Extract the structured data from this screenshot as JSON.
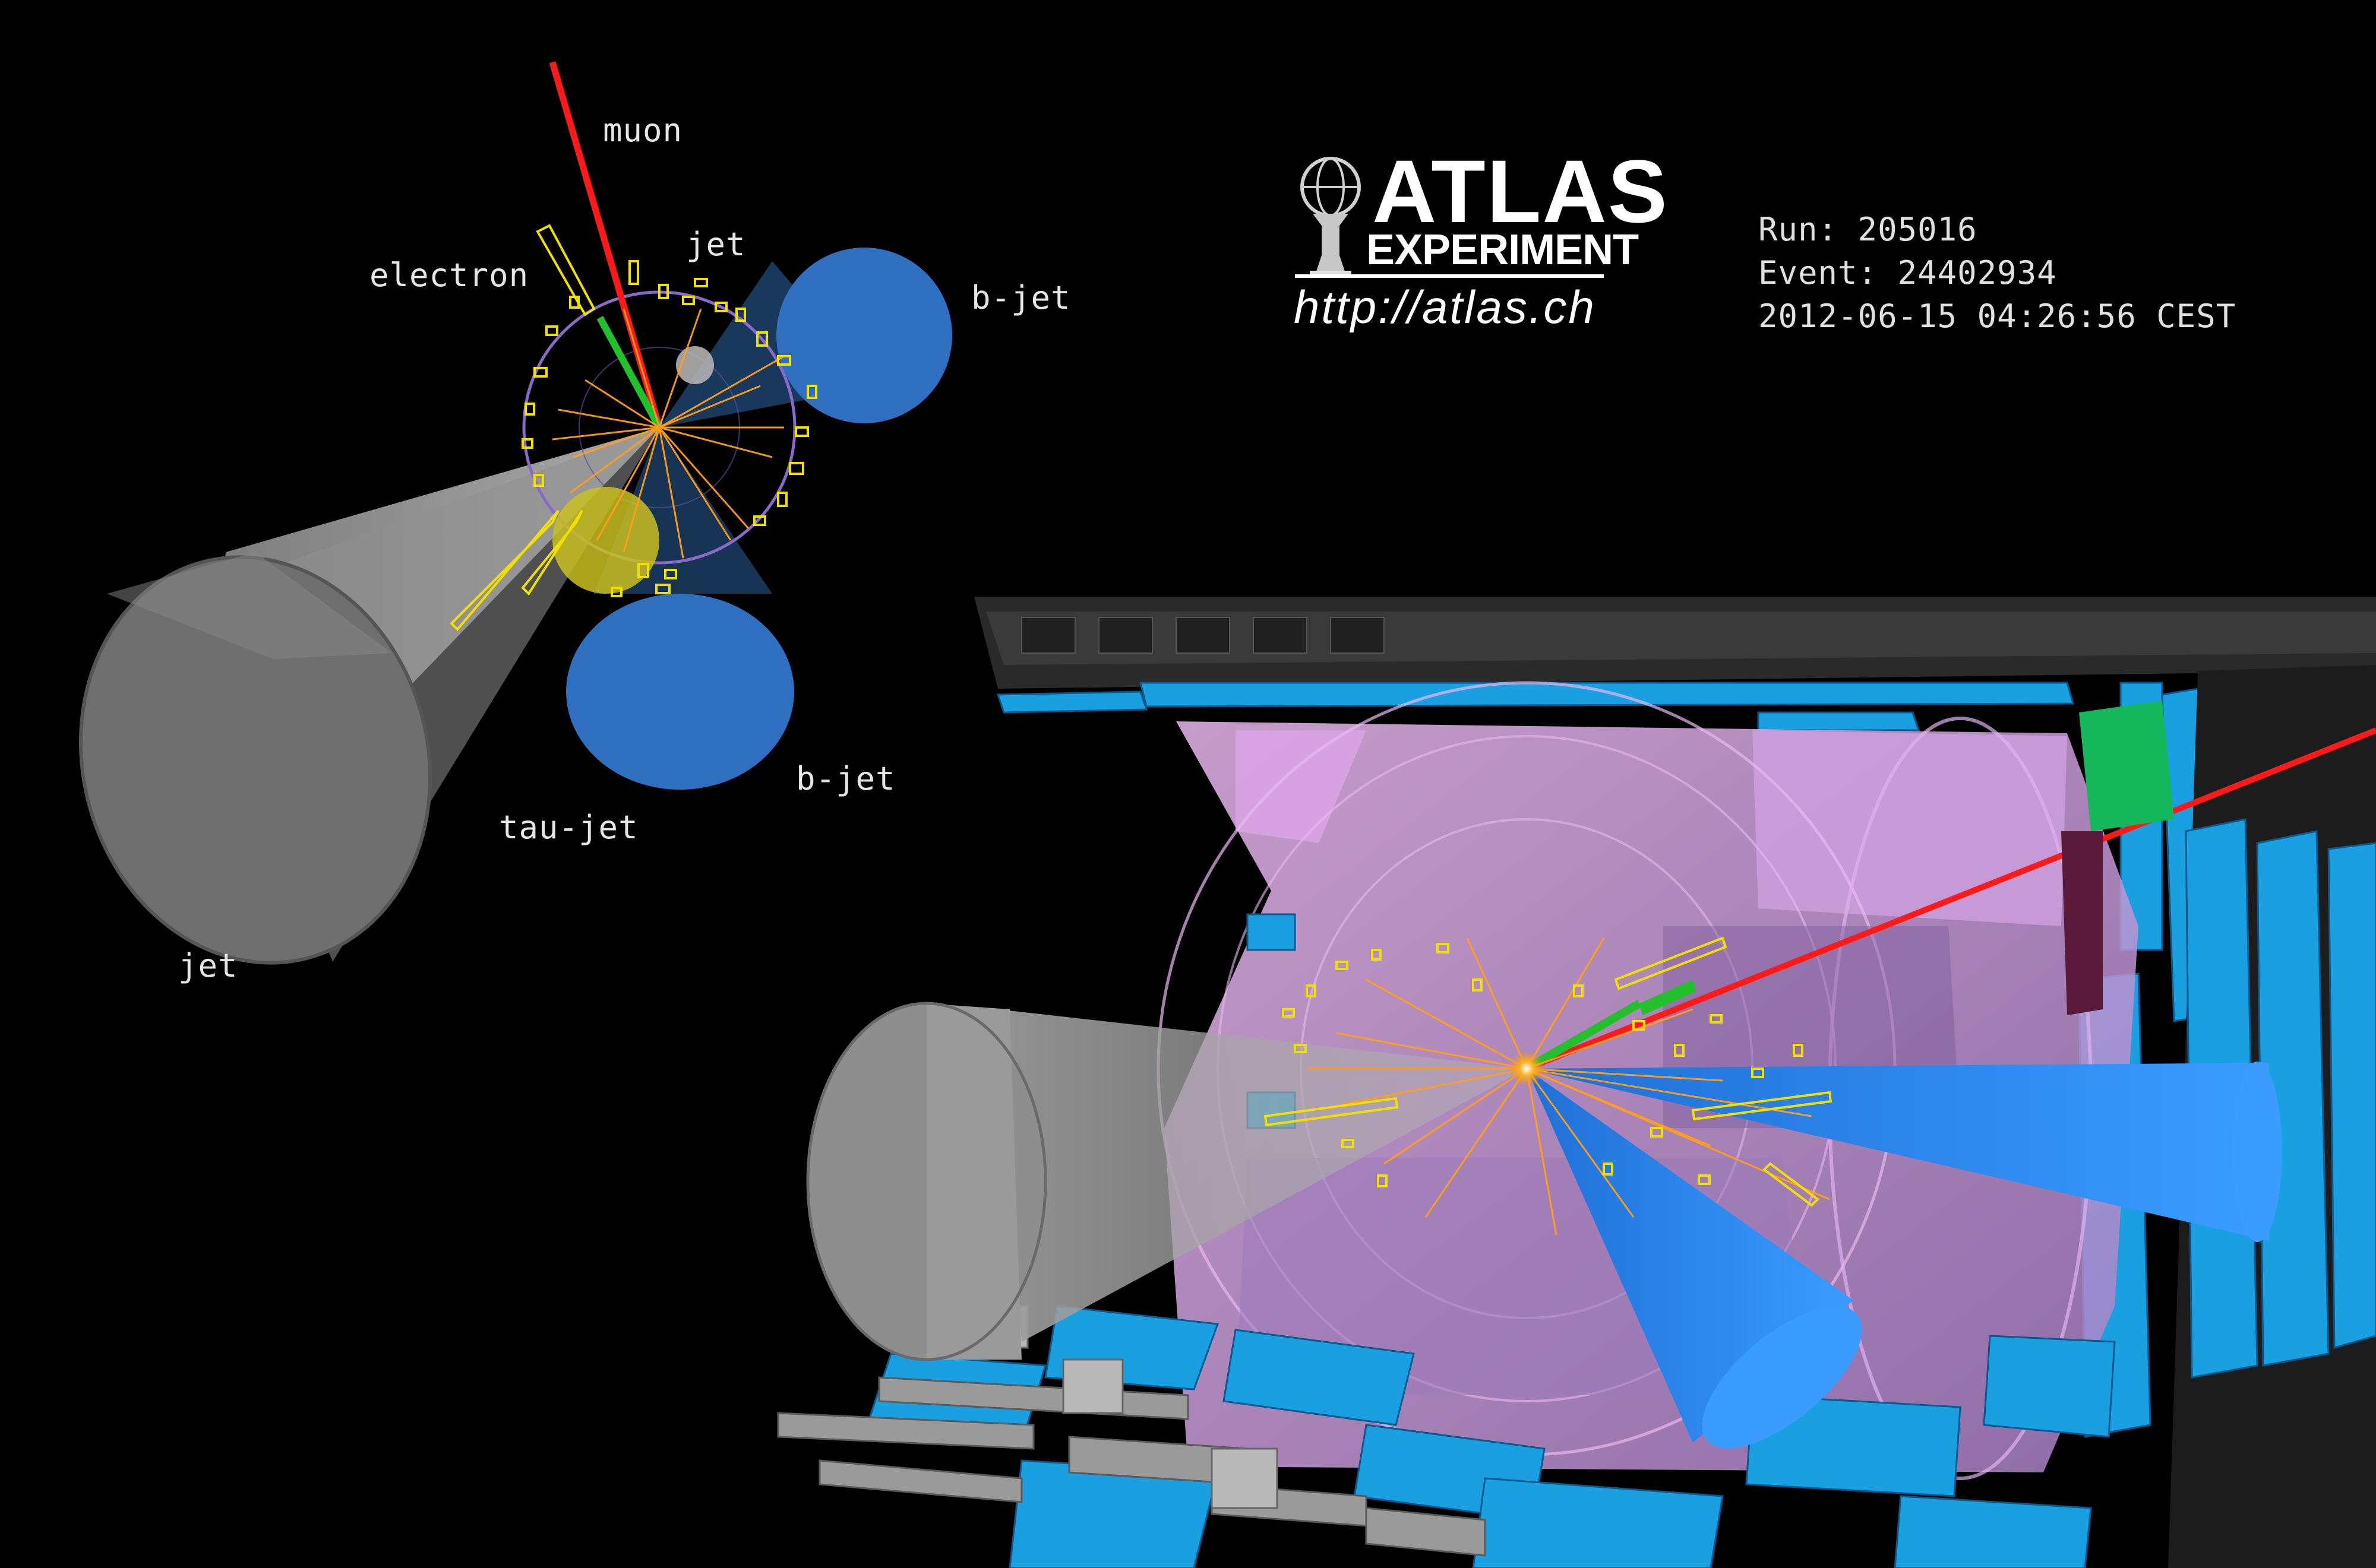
{
  "event_info": {
    "run": "Run: 205016",
    "event": "Event: 24402934",
    "datetime": "2012-06-15 04:26:56 CEST"
  },
  "logo": {
    "title": "ATLAS",
    "subtitle": "EXPERIMENT",
    "url": "http://atlas.ch"
  },
  "labels": {
    "muon": "muon",
    "electron": "electron",
    "jet_top": "jet",
    "b_jet_upper": "b-jet",
    "b_jet_lower": "b-jet",
    "tau_jet": "tau-jet",
    "jet_left": "jet"
  },
  "colors": {
    "background": "#000000",
    "muon": "#ff1a1a",
    "electron": "#22c02a",
    "tracks": "#ff9f1a",
    "calorimeter": "#f0e000",
    "b_jet": "#2f6fc0",
    "jet_cone": "#8a8a8a",
    "detector_frame": "#1aa0e0",
    "calorimeter_volume": "#d9a0e0"
  }
}
